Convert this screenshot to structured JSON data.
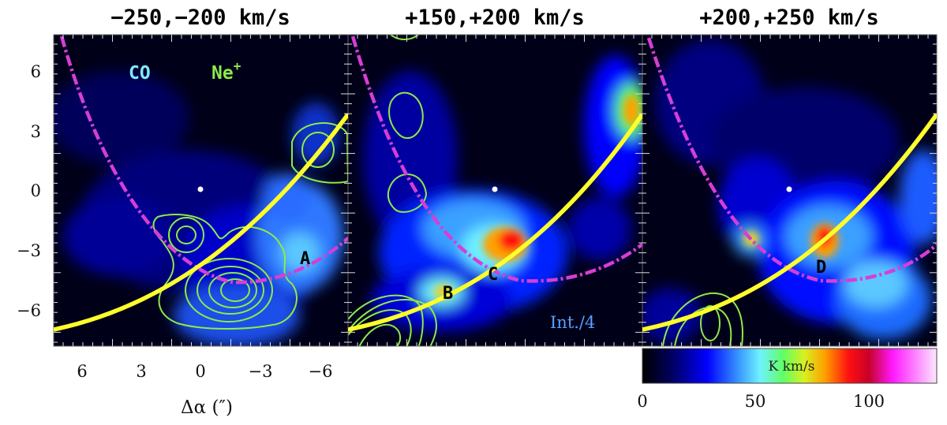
{
  "panels": [
    {
      "title": "−250,−200 km/s",
      "label": "A"
    },
    {
      "title": "+150,+200 km/s",
      "label": "B",
      "label2": "C",
      "note": "Int./4"
    },
    {
      "title": "+200,+250 km/s",
      "label": "D"
    }
  ],
  "legend": {
    "co": "CO",
    "ne": "Ne",
    "ne_sup": "+",
    "co_color": "#7fe9ff",
    "ne_color": "#8dea4a"
  },
  "axes": {
    "y_ticks": [
      "6",
      "3",
      "0",
      "−3",
      "−6"
    ],
    "x_ticks": [
      "6",
      "3",
      "0",
      "−3",
      "−6"
    ],
    "x_label": "Δα (″)"
  },
  "colorbar": {
    "label": "K km/s",
    "ticks": [
      "0",
      "50",
      "100"
    ],
    "range": [
      0,
      130
    ]
  },
  "colors": {
    "yellow_track": "#ffff2a",
    "magenta_track": "#d63ed6",
    "contour": "#8dea4a"
  }
}
